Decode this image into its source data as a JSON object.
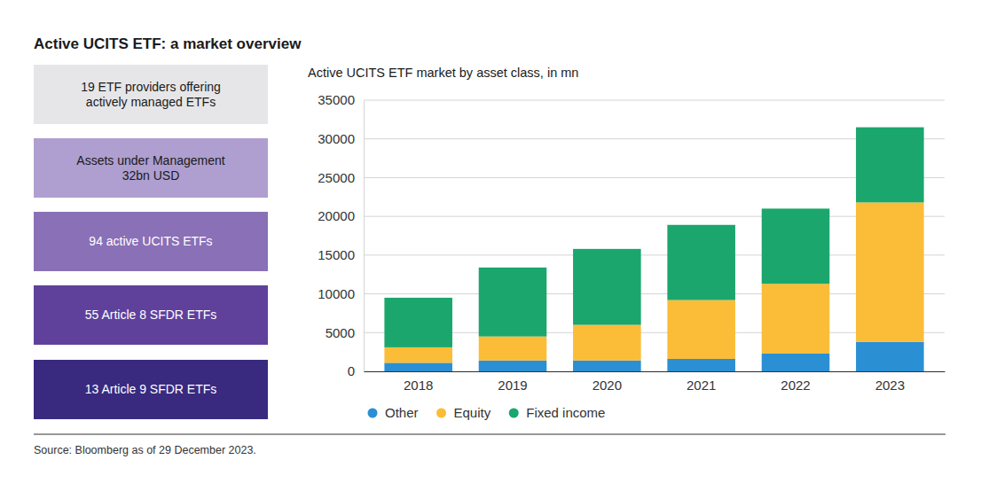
{
  "header": {
    "title": "Active UCITS ETF: a market overview"
  },
  "panels": [
    {
      "lines": [
        "19 ETF providers offering",
        "actively managed ETFs"
      ]
    },
    {
      "lines": [
        "Assets under Management",
        "32bn USD"
      ]
    },
    {
      "lines": [
        "94 active UCITS ETFs"
      ]
    },
    {
      "lines": [
        "55 Article 8 SFDR ETFs"
      ]
    },
    {
      "lines": [
        "13 Article 9 SFDR ETFs"
      ]
    }
  ],
  "source": "Source: Bloomberg as of 29 December 2023.",
  "chart_data": {
    "type": "bar",
    "stacked": true,
    "grid": true,
    "legend": "bottom",
    "title": "Active UCITS ETF market by asset class, in mn",
    "categories": [
      "2018",
      "2019",
      "2020",
      "2021",
      "2022",
      "2023"
    ],
    "series": [
      {
        "name": "Other",
        "color": "#2b8fd4",
        "values": [
          1100,
          1400,
          1400,
          1600,
          2300,
          3800
        ]
      },
      {
        "name": "Equity",
        "color": "#fbbd37",
        "values": [
          2000,
          3100,
          4600,
          7600,
          9000,
          18000
        ]
      },
      {
        "name": "Fixed income",
        "color": "#1ba66d",
        "values": [
          6400,
          8900,
          9800,
          9700,
          9700,
          9700
        ]
      }
    ],
    "ylim": [
      0,
      35000
    ],
    "yticks": [
      0,
      5000,
      10000,
      15000,
      20000,
      25000,
      30000,
      35000
    ]
  }
}
